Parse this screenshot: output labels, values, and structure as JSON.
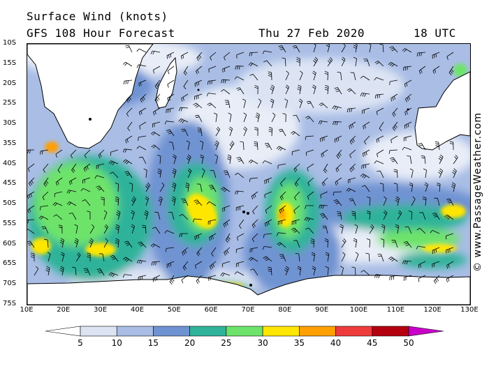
{
  "header": {
    "title_line1": "Surface Wind (knots)",
    "title_line2": "GFS 108 Hour Forecast",
    "date": "Thu 27 Feb 2020",
    "time": "18 UTC"
  },
  "credit": "© www.PassageWeather.com",
  "latitude_labels": [
    "10S",
    "15S",
    "20S",
    "25S",
    "30S",
    "35S",
    "40S",
    "45S",
    "50S",
    "55S",
    "60S",
    "65S",
    "70S",
    "75S"
  ],
  "longitude_labels": [
    "10E",
    "20E",
    "30E",
    "40E",
    "50E",
    "60E",
    "70E",
    "80E",
    "90E",
    "100E",
    "110E",
    "120E",
    "130E"
  ],
  "legend": {
    "ticks": [
      "5",
      "10",
      "15",
      "20",
      "25",
      "30",
      "35",
      "40",
      "45",
      "50"
    ],
    "colors": [
      "#ffffff",
      "#dce4f4",
      "#a9bde5",
      "#6f93d2",
      "#2fb39a",
      "#6ee36b",
      "#ffe600",
      "#ff9f00",
      "#ef3b3b",
      "#b4000f",
      "#c800c8"
    ]
  },
  "map": {
    "ocean_colors": {
      "calm": "#e8edf7",
      "light": "#a9bde5",
      "moderate": "#6f93d2",
      "fresh": "#2fb39a",
      "strong": "#6ee36b",
      "gale": "#ffe600",
      "storm": "#ff9f00"
    },
    "land_color": "#ffffff",
    "coastline_color": "#000000"
  }
}
